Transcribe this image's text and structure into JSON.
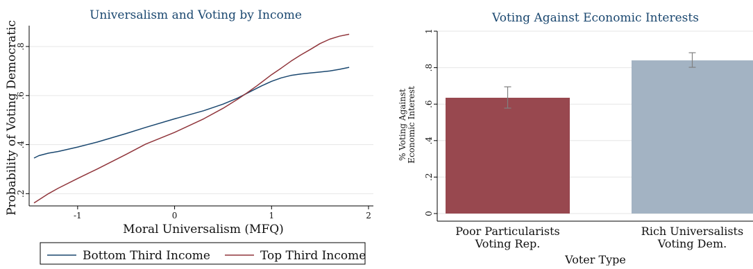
{
  "colors": {
    "bottom_third": "#1a476f",
    "top_third": "#90353b",
    "bar_poor": "#98484f",
    "bar_rich": "#a3b3c3",
    "title": "#1a476f",
    "grid": "#e6e6e6",
    "error_bar": "#808080"
  },
  "chart_data": [
    {
      "type": "line",
      "title": "Universalism and Voting by Income",
      "xlabel": "Moral Universalism (MFQ)",
      "ylabel": "Probability of Voting Democratic",
      "xlim": [
        -1.5,
        2.05
      ],
      "ylim": [
        0.15,
        0.885
      ],
      "xticks": [
        -1,
        0,
        1,
        2
      ],
      "xtick_labels": [
        "-1",
        "0",
        "1",
        "2"
      ],
      "yticks": [
        0.2,
        0.4,
        0.6,
        0.8
      ],
      "ytick_labels": [
        ".2",
        ".4",
        ".6",
        ".8"
      ],
      "grid": true,
      "legend_position": "bottom",
      "series": [
        {
          "name": "Bottom Third Income",
          "x": [
            -1.45,
            -1.4,
            -1.3,
            -1.2,
            -1.0,
            -0.8,
            -0.5,
            -0.3,
            0.0,
            0.3,
            0.5,
            0.65,
            0.75,
            0.85,
            0.9,
            1.0,
            1.1,
            1.2,
            1.3,
            1.4,
            1.5,
            1.6,
            1.7,
            1.8
          ],
          "y": [
            0.345,
            0.355,
            0.365,
            0.372,
            0.39,
            0.41,
            0.445,
            0.47,
            0.505,
            0.538,
            0.565,
            0.59,
            0.61,
            0.63,
            0.64,
            0.658,
            0.672,
            0.682,
            0.688,
            0.692,
            0.696,
            0.7,
            0.707,
            0.715
          ]
        },
        {
          "name": "Top Third Income",
          "x": [
            -1.45,
            -1.4,
            -1.3,
            -1.2,
            -1.0,
            -0.8,
            -0.5,
            -0.3,
            0.0,
            0.3,
            0.5,
            0.65,
            0.75,
            0.85,
            0.9,
            1.0,
            1.1,
            1.2,
            1.3,
            1.4,
            1.5,
            1.6,
            1.7,
            1.8
          ],
          "y": [
            0.162,
            0.175,
            0.2,
            0.222,
            0.262,
            0.3,
            0.36,
            0.402,
            0.45,
            0.505,
            0.548,
            0.585,
            0.612,
            0.64,
            0.655,
            0.685,
            0.712,
            0.74,
            0.765,
            0.788,
            0.812,
            0.83,
            0.842,
            0.85
          ]
        }
      ]
    },
    {
      "type": "bar",
      "title": "Voting Against Economic Interests",
      "xlabel": "Voter Type",
      "ylabel_lines": [
        "% Voting Against",
        "Economic Interest"
      ],
      "categories": [
        [
          "Poor Particularists",
          "Voting Rep."
        ],
        [
          "Rich Universalists",
          "Voting Dem."
        ]
      ],
      "values": [
        0.635,
        0.84
      ],
      "ci": [
        [
          0.578,
          0.695
        ],
        [
          0.802,
          0.882
        ]
      ],
      "ylim": [
        0,
        1
      ],
      "yticks": [
        0,
        0.2,
        0.4,
        0.6,
        0.8,
        1
      ],
      "ytick_labels": [
        "0",
        ".2",
        ".4",
        ".6",
        ".8",
        "1"
      ],
      "grid": true
    }
  ]
}
